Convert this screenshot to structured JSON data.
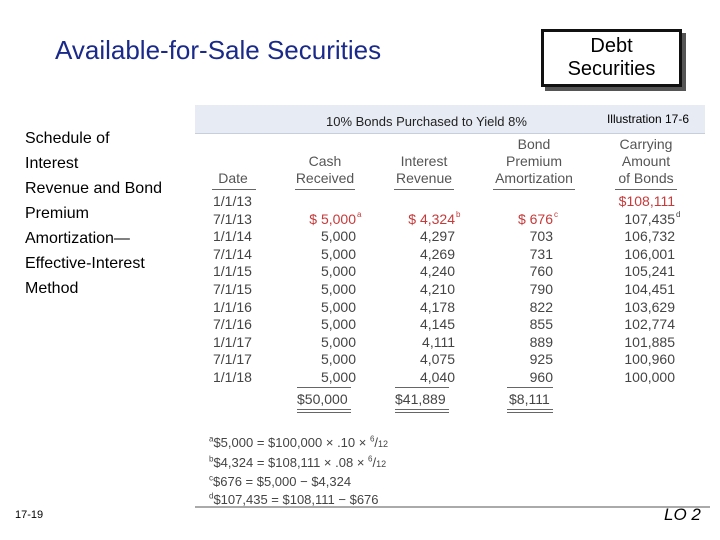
{
  "title": "Available-for-Sale Securities",
  "debt_box": {
    "line1": "Debt",
    "line2": "Securities"
  },
  "side_text": {
    "lines": [
      "Schedule of",
      "Interest",
      "Revenue and Bond",
      "Premium",
      "Amortization—",
      "Effective-Interest",
      "Method"
    ]
  },
  "illustration": "Illustration 17-6",
  "table_title": "10% Bonds Purchased to Yield 8%",
  "columns": {
    "date": [
      "Date"
    ],
    "cash": [
      "Cash",
      "Received"
    ],
    "interest": [
      "Interest",
      "Revenue"
    ],
    "premium": [
      "Bond",
      "Premium",
      "Amortization"
    ],
    "carrying": [
      "Carrying",
      "Amount",
      "of Bonds"
    ]
  },
  "rows": [
    {
      "date": "1/1/13",
      "cash": "",
      "interest": "",
      "premium": "",
      "carrying": "$108,111"
    },
    {
      "date": "7/1/13",
      "cash": "$ 5,000",
      "cash_note": "a",
      "interest": "$ 4,324",
      "interest_note": "b",
      "premium": "$   676",
      "premium_note": "c",
      "carrying": "107,435",
      "carrying_note": "d"
    },
    {
      "date": "1/1/14",
      "cash": "5,000",
      "interest": "4,297",
      "premium": "703",
      "carrying": "106,732"
    },
    {
      "date": "7/1/14",
      "cash": "5,000",
      "interest": "4,269",
      "premium": "731",
      "carrying": "106,001"
    },
    {
      "date": "1/1/15",
      "cash": "5,000",
      "interest": "4,240",
      "premium": "760",
      "carrying": "105,241"
    },
    {
      "date": "7/1/15",
      "cash": "5,000",
      "interest": "4,210",
      "premium": "790",
      "carrying": "104,451"
    },
    {
      "date": "1/1/16",
      "cash": "5,000",
      "interest": "4,178",
      "premium": "822",
      "carrying": "103,629"
    },
    {
      "date": "7/1/16",
      "cash": "5,000",
      "interest": "4,145",
      "premium": "855",
      "carrying": "102,774"
    },
    {
      "date": "1/1/17",
      "cash": "5,000",
      "interest": "4,111",
      "premium": "889",
      "carrying": "101,885"
    },
    {
      "date": "7/1/17",
      "cash": "5,000",
      "interest": "4,075",
      "premium": "925",
      "carrying": "100,960"
    },
    {
      "date": "1/1/18",
      "cash": "5,000",
      "interest": "4,040",
      "premium": "960",
      "carrying": "100,000"
    }
  ],
  "totals": {
    "cash": "$50,000",
    "interest": "$41,889",
    "premium": "$8,111"
  },
  "footnotes": {
    "a": {
      "mark": "a",
      "left": "$5,000 = $100,000 × .10 ×",
      "num": "6",
      "den": "12"
    },
    "b": {
      "mark": "b",
      "left": "$4,324 = $108,111 × .08 ×",
      "num": "6",
      "den": "12"
    },
    "c": {
      "mark": "c",
      "text": "$676 = $5,000 − $4,324"
    },
    "d": {
      "mark": "d",
      "text": "$107,435 = $108,111 − $676"
    }
  },
  "slide_number": "17-19",
  "lo": "LO 2",
  "colors": {
    "title": "#1a2a8a",
    "red": "#c63a3a",
    "header_band": "#e7ebf3"
  }
}
